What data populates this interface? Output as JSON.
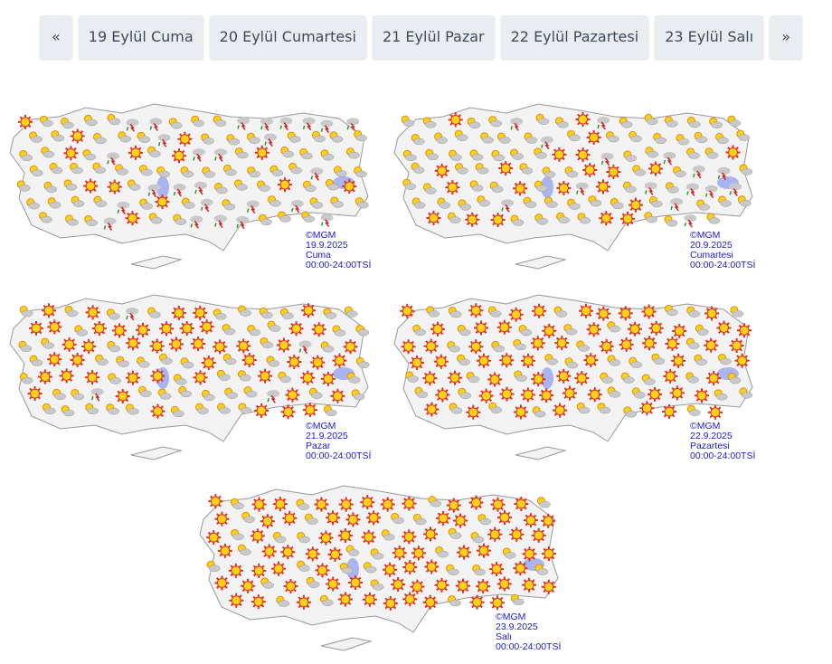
{
  "nav": {
    "prev": "«",
    "next": "»",
    "tabs": [
      "19 Eylül Cuma",
      "20 Eylül Cumartesi",
      "21 Eylül Pazar",
      "22 Eylül Pazartesi",
      "23 Eylül Salı"
    ]
  },
  "maps": [
    {
      "copyright": "©MGM",
      "date": "19.9.2025",
      "day": "Cuma",
      "time": "00:00-24:00TSİ",
      "sunny_share": 0.15,
      "storm_share": 0.25
    },
    {
      "copyright": "©MGM",
      "date": "20.9.2025",
      "day": "Cumartesi",
      "time": "00:00-24:00TSİ",
      "sunny_share": 0.2,
      "storm_share": 0.15
    },
    {
      "copyright": "©MGM",
      "date": "21.9.2025",
      "day": "Pazar",
      "time": "00:00-24:00TSİ",
      "sunny_share": 0.35,
      "storm_share": 0.08
    },
    {
      "copyright": "©MGM",
      "date": "22.9.2025",
      "day": "Pazartesi",
      "time": "00:00-24:00TSİ",
      "sunny_share": 0.6,
      "storm_share": 0
    },
    {
      "copyright": "©MGM",
      "date": "23.9.2025",
      "day": "Salı",
      "time": "00:00-24:00TSİ",
      "sunny_share": 0.7,
      "storm_share": 0
    }
  ],
  "colors": {
    "sun": "#ffd21a",
    "ray": "#e0301e",
    "cloud": "#c9c9c9",
    "land": "#f3f3f3",
    "lake": "#aab4f0"
  }
}
